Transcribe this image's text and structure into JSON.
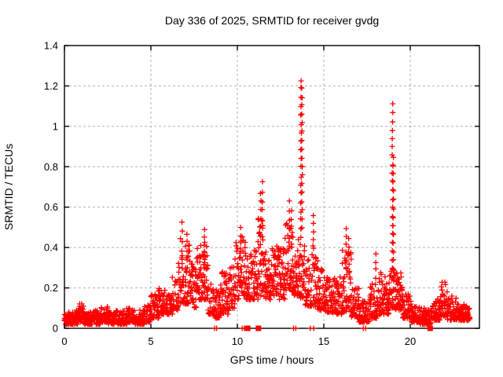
{
  "window": {
    "background": "#ffffff",
    "foreground": "#000000"
  },
  "chart_data": {
    "type": "scatter",
    "title": "Day 336 of 2025, SRMTID for receiver gvdg",
    "xlabel": "GPS time / hours",
    "ylabel": "SRMTID / TECUs",
    "xlim": [
      0,
      24
    ],
    "ylim": [
      0,
      1.4
    ],
    "xticks": {
      "values": [
        0,
        5,
        10,
        15,
        20
      ],
      "labels": [
        "0",
        "5",
        "10",
        "15",
        "20"
      ]
    },
    "yticks": {
      "values": [
        0,
        0.2,
        0.4,
        0.6,
        0.8,
        1.0,
        1.2,
        1.4
      ],
      "labels": [
        "0",
        "0.2",
        "0.4",
        "0.6",
        "0.8",
        "1",
        "1.2",
        "1.4"
      ]
    },
    "grid": {
      "show": true,
      "color": "#b0b0b0",
      "dash": "3,3"
    },
    "border_color": "#000000",
    "series": [
      {
        "name": "srmtid-plus-points",
        "marker": "plus",
        "color": "#ff0000",
        "band_envelope": [
          [
            0.0,
            0.5,
            0.02,
            0.08
          ],
          [
            0.5,
            0.8,
            0.02,
            0.09
          ],
          [
            0.8,
            1.1,
            0.03,
            0.13
          ],
          [
            1.1,
            1.6,
            0.02,
            0.08
          ],
          [
            1.6,
            2.1,
            0.02,
            0.09
          ],
          [
            2.1,
            2.5,
            0.03,
            0.11
          ],
          [
            2.5,
            3.0,
            0.02,
            0.08
          ],
          [
            3.0,
            3.6,
            0.02,
            0.09
          ],
          [
            3.6,
            4.1,
            0.03,
            0.1
          ],
          [
            4.1,
            4.65,
            0.02,
            0.09
          ],
          [
            4.65,
            5.0,
            0.03,
            0.12
          ],
          [
            5.0,
            5.45,
            0.05,
            0.17
          ],
          [
            5.45,
            5.85,
            0.07,
            0.2
          ],
          [
            5.85,
            6.25,
            0.07,
            0.17
          ],
          [
            6.25,
            6.6,
            0.09,
            0.26
          ],
          [
            6.6,
            7.0,
            0.12,
            0.45
          ],
          [
            7.0,
            7.35,
            0.12,
            0.42
          ],
          [
            7.35,
            7.65,
            0.1,
            0.33
          ],
          [
            7.65,
            8.0,
            0.14,
            0.42
          ],
          [
            8.0,
            8.3,
            0.14,
            0.45
          ],
          [
            8.3,
            8.65,
            0.07,
            0.24
          ],
          [
            8.65,
            9.05,
            0.05,
            0.19
          ],
          [
            9.05,
            9.5,
            0.07,
            0.28
          ],
          [
            9.5,
            9.85,
            0.1,
            0.32
          ],
          [
            9.85,
            10.15,
            0.14,
            0.44
          ],
          [
            10.15,
            10.5,
            0.16,
            0.47
          ],
          [
            10.5,
            10.85,
            0.14,
            0.38
          ],
          [
            10.85,
            11.2,
            0.14,
            0.4
          ],
          [
            11.2,
            11.55,
            0.16,
            0.58
          ],
          [
            11.55,
            11.95,
            0.14,
            0.38
          ],
          [
            11.95,
            12.35,
            0.16,
            0.43
          ],
          [
            12.35,
            12.75,
            0.14,
            0.4
          ],
          [
            12.75,
            13.3,
            0.18,
            0.52
          ],
          [
            13.3,
            13.6,
            0.16,
            0.46
          ],
          [
            13.6,
            13.9,
            0.15,
            0.42
          ],
          [
            13.9,
            14.25,
            0.11,
            0.36
          ],
          [
            14.25,
            14.65,
            0.11,
            0.42
          ],
          [
            14.65,
            15.05,
            0.09,
            0.3
          ],
          [
            15.05,
            15.55,
            0.08,
            0.28
          ],
          [
            15.55,
            16.05,
            0.07,
            0.26
          ],
          [
            16.05,
            16.6,
            0.08,
            0.4
          ],
          [
            16.6,
            17.05,
            0.05,
            0.2
          ],
          [
            17.05,
            17.65,
            0.03,
            0.14
          ],
          [
            17.65,
            18.15,
            0.05,
            0.25
          ],
          [
            18.15,
            18.75,
            0.07,
            0.28
          ],
          [
            18.75,
            19.15,
            0.1,
            0.3
          ],
          [
            19.15,
            19.55,
            0.09,
            0.28
          ],
          [
            19.55,
            20.05,
            0.05,
            0.17
          ],
          [
            20.05,
            20.55,
            0.03,
            0.11
          ],
          [
            20.55,
            21.25,
            0.02,
            0.1
          ],
          [
            21.25,
            21.75,
            0.04,
            0.15
          ],
          [
            21.75,
            22.15,
            0.06,
            0.23
          ],
          [
            22.15,
            22.65,
            0.04,
            0.16
          ],
          [
            22.65,
            23.15,
            0.04,
            0.13
          ],
          [
            23.15,
            23.45,
            0.04,
            0.11
          ]
        ],
        "spike_columns": [
          [
            6.8,
            0.3,
            0.52
          ],
          [
            7.1,
            0.3,
            0.47
          ],
          [
            8.1,
            0.3,
            0.49
          ],
          [
            10.2,
            0.35,
            0.5
          ],
          [
            11.35,
            0.42,
            0.67
          ],
          [
            11.45,
            0.45,
            0.72
          ],
          [
            13.0,
            0.45,
            0.63
          ],
          [
            13.12,
            0.42,
            0.58
          ],
          [
            13.68,
            0.45,
            1.23
          ],
          [
            13.74,
            0.5,
            1.19
          ],
          [
            14.4,
            0.35,
            0.56
          ],
          [
            16.3,
            0.3,
            0.49
          ],
          [
            16.45,
            0.28,
            0.45
          ],
          [
            18.0,
            0.25,
            0.37
          ],
          [
            18.97,
            0.3,
            1.11
          ],
          [
            19.02,
            0.25,
            0.85
          ]
        ],
        "zero_line_marks": [
          8.68,
          8.8,
          10.28,
          10.4,
          13.25,
          13.38,
          14.22,
          14.42,
          17.28,
          17.42
        ]
      },
      {
        "name": "flagged-interval-squares",
        "marker": "filled-square",
        "color": "#ff0000",
        "x": [
          10.6,
          11.22,
          21.15
        ],
        "y": 0
      }
    ],
    "render": {
      "seed": 42,
      "samples_per_hour": 45,
      "marker_size": 7
    }
  }
}
